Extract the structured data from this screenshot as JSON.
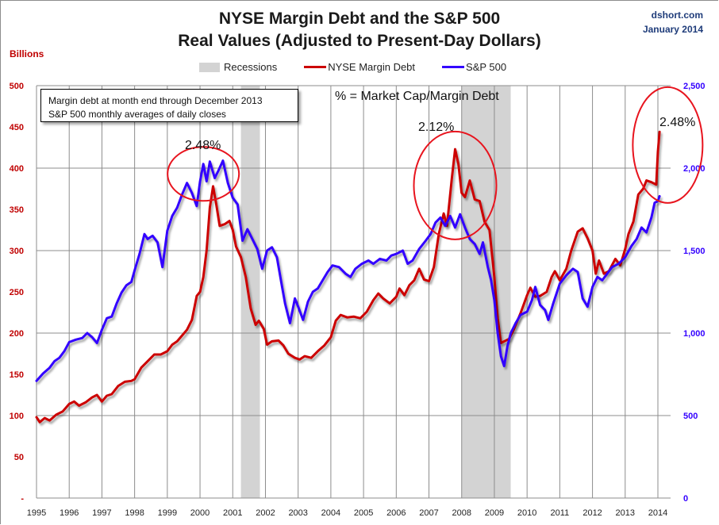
{
  "header": {
    "title_line1": "NYSE Margin Debt and the S&P 500",
    "title_line2": "Real Values (Adjusted to Present-Day Dollars)",
    "source": "dshort.com",
    "date": "January 2014",
    "left_axis_unit": "Billions"
  },
  "legend": {
    "recessions": "Recessions",
    "margin_debt": "NYSE Margin Debt",
    "sp500": "S&P 500"
  },
  "annotations": {
    "note_line1": "Margin debt at month end through  December 2013",
    "note_line2": "S&P 500 monthly averages of daily closes",
    "formula": "% = Market Cap/Margin Debt",
    "peak_2000": "2.48%",
    "peak_2007": "2.12%",
    "peak_2013": "2.48%"
  },
  "colors": {
    "margin_debt": "#cc0000",
    "sp500": "#3300ff",
    "recession": "#d3d3d3",
    "left_axis": "#c00000",
    "right_axis": "#3300ff",
    "circle": "#e8141e"
  },
  "chart_data": {
    "type": "line",
    "title": "NYSE Margin Debt and the S&P 500 Real Values (Adjusted to Present-Day Dollars)",
    "xlabel": "",
    "ylabel_left": "Billions",
    "xlim": [
      1995,
      2014
    ],
    "ylim_left": [
      0,
      500
    ],
    "ylim_right": [
      0,
      2500
    ],
    "grid": true,
    "legend_position": "top-center",
    "x_ticks": [
      "1995",
      "1996",
      "1997",
      "1998",
      "1999",
      "2000",
      "2001",
      "2002",
      "2003",
      "2004",
      "2005",
      "2006",
      "2007",
      "2008",
      "2009",
      "2010",
      "2011",
      "2012",
      "2013",
      "2014"
    ],
    "y_left_ticks": [
      "-",
      "50",
      "100",
      "150",
      "200",
      "250",
      "300",
      "350",
      "400",
      "450",
      "500"
    ],
    "y_right_ticks": [
      "0",
      "500",
      "1,000",
      "1,500",
      "2,000",
      "2,500"
    ],
    "recessions": [
      [
        2001.25,
        2001.83
      ],
      [
        2008.0,
        2009.5
      ]
    ],
    "series": [
      {
        "name": "NYSE Margin Debt",
        "axis": "left",
        "points": [
          [
            1995.0,
            98
          ],
          [
            1995.1,
            92
          ],
          [
            1995.25,
            97
          ],
          [
            1995.4,
            94
          ],
          [
            1995.6,
            101
          ],
          [
            1995.8,
            105
          ],
          [
            1996.0,
            114
          ],
          [
            1996.15,
            117
          ],
          [
            1996.3,
            112
          ],
          [
            1996.5,
            116
          ],
          [
            1996.7,
            122
          ],
          [
            1996.85,
            125
          ],
          [
            1997.0,
            117
          ],
          [
            1997.15,
            124
          ],
          [
            1997.3,
            126
          ],
          [
            1997.5,
            136
          ],
          [
            1997.7,
            141
          ],
          [
            1997.9,
            142
          ],
          [
            1998.0,
            144
          ],
          [
            1998.2,
            158
          ],
          [
            1998.4,
            166
          ],
          [
            1998.6,
            174
          ],
          [
            1998.8,
            174
          ],
          [
            1999.0,
            178
          ],
          [
            1999.15,
            186
          ],
          [
            1999.3,
            190
          ],
          [
            1999.45,
            197
          ],
          [
            1999.6,
            204
          ],
          [
            1999.75,
            216
          ],
          [
            1999.9,
            245
          ],
          [
            2000.0,
            250
          ],
          [
            2000.1,
            268
          ],
          [
            2000.2,
            300
          ],
          [
            2000.3,
            352
          ],
          [
            2000.4,
            378
          ],
          [
            2000.5,
            355
          ],
          [
            2000.6,
            330
          ],
          [
            2000.75,
            332
          ],
          [
            2000.9,
            336
          ],
          [
            2001.0,
            325
          ],
          [
            2001.1,
            305
          ],
          [
            2001.25,
            292
          ],
          [
            2001.4,
            268
          ],
          [
            2001.55,
            230
          ],
          [
            2001.7,
            210
          ],
          [
            2001.8,
            215
          ],
          [
            2001.95,
            205
          ],
          [
            2002.05,
            186
          ],
          [
            2002.2,
            190
          ],
          [
            2002.4,
            191
          ],
          [
            2002.55,
            185
          ],
          [
            2002.7,
            175
          ],
          [
            2002.9,
            170
          ],
          [
            2003.05,
            168
          ],
          [
            2003.2,
            172
          ],
          [
            2003.4,
            170
          ],
          [
            2003.6,
            178
          ],
          [
            2003.8,
            185
          ],
          [
            2004.0,
            195
          ],
          [
            2004.15,
            215
          ],
          [
            2004.3,
            222
          ],
          [
            2004.5,
            219
          ],
          [
            2004.7,
            220
          ],
          [
            2004.9,
            218
          ],
          [
            2005.1,
            226
          ],
          [
            2005.3,
            240
          ],
          [
            2005.45,
            248
          ],
          [
            2005.6,
            242
          ],
          [
            2005.8,
            236
          ],
          [
            2006.0,
            244
          ],
          [
            2006.1,
            254
          ],
          [
            2006.25,
            246
          ],
          [
            2006.4,
            258
          ],
          [
            2006.55,
            264
          ],
          [
            2006.7,
            278
          ],
          [
            2006.85,
            265
          ],
          [
            2007.0,
            263
          ],
          [
            2007.15,
            280
          ],
          [
            2007.3,
            320
          ],
          [
            2007.45,
            345
          ],
          [
            2007.55,
            330
          ],
          [
            2007.7,
            388
          ],
          [
            2007.8,
            423
          ],
          [
            2007.9,
            405
          ],
          [
            2008.0,
            370
          ],
          [
            2008.1,
            365
          ],
          [
            2008.25,
            385
          ],
          [
            2008.4,
            362
          ],
          [
            2008.55,
            360
          ],
          [
            2008.7,
            335
          ],
          [
            2008.85,
            325
          ],
          [
            2009.0,
            268
          ],
          [
            2009.1,
            218
          ],
          [
            2009.2,
            188
          ],
          [
            2009.3,
            190
          ],
          [
            2009.45,
            193
          ],
          [
            2009.6,
            205
          ],
          [
            2009.8,
            224
          ],
          [
            2010.0,
            246
          ],
          [
            2010.1,
            255
          ],
          [
            2010.25,
            244
          ],
          [
            2010.4,
            245
          ],
          [
            2010.6,
            250
          ],
          [
            2010.75,
            268
          ],
          [
            2010.85,
            275
          ],
          [
            2011.0,
            264
          ],
          [
            2011.2,
            278
          ],
          [
            2011.35,
            300
          ],
          [
            2011.55,
            323
          ],
          [
            2011.7,
            327
          ],
          [
            2011.85,
            315
          ],
          [
            2012.0,
            300
          ],
          [
            2012.1,
            272
          ],
          [
            2012.2,
            288
          ],
          [
            2012.35,
            272
          ],
          [
            2012.5,
            275
          ],
          [
            2012.7,
            290
          ],
          [
            2012.85,
            282
          ],
          [
            2013.0,
            302
          ],
          [
            2013.1,
            320
          ],
          [
            2013.25,
            335
          ],
          [
            2013.4,
            368
          ],
          [
            2013.55,
            375
          ],
          [
            2013.65,
            385
          ],
          [
            2013.8,
            383
          ],
          [
            2013.95,
            380
          ],
          [
            2014.0,
            420
          ],
          [
            2014.05,
            444
          ]
        ]
      },
      {
        "name": "S&P 500",
        "axis": "right",
        "points": [
          [
            1995.0,
            710
          ],
          [
            1995.2,
            755
          ],
          [
            1995.4,
            790
          ],
          [
            1995.55,
            830
          ],
          [
            1995.7,
            850
          ],
          [
            1995.85,
            890
          ],
          [
            1996.0,
            945
          ],
          [
            1996.2,
            960
          ],
          [
            1996.4,
            970
          ],
          [
            1996.55,
            1000
          ],
          [
            1996.7,
            975
          ],
          [
            1996.85,
            940
          ],
          [
            1997.0,
            1020
          ],
          [
            1997.15,
            1090
          ],
          [
            1997.3,
            1100
          ],
          [
            1997.45,
            1180
          ],
          [
            1997.6,
            1245
          ],
          [
            1997.75,
            1290
          ],
          [
            1997.9,
            1310
          ],
          [
            1998.0,
            1380
          ],
          [
            1998.15,
            1480
          ],
          [
            1998.3,
            1600
          ],
          [
            1998.4,
            1570
          ],
          [
            1998.55,
            1590
          ],
          [
            1998.7,
            1550
          ],
          [
            1998.85,
            1400
          ],
          [
            1999.0,
            1620
          ],
          [
            1999.15,
            1710
          ],
          [
            1999.3,
            1760
          ],
          [
            1999.45,
            1840
          ],
          [
            1999.6,
            1910
          ],
          [
            1999.75,
            1850
          ],
          [
            1999.9,
            1770
          ],
          [
            2000.0,
            1920
          ],
          [
            2000.1,
            2025
          ],
          [
            2000.2,
            1920
          ],
          [
            2000.3,
            2040
          ],
          [
            2000.45,
            1940
          ],
          [
            2000.55,
            1980
          ],
          [
            2000.7,
            2045
          ],
          [
            2000.85,
            1910
          ],
          [
            2001.0,
            1820
          ],
          [
            2001.15,
            1780
          ],
          [
            2001.3,
            1560
          ],
          [
            2001.45,
            1630
          ],
          [
            2001.6,
            1570
          ],
          [
            2001.75,
            1510
          ],
          [
            2001.9,
            1390
          ],
          [
            2002.05,
            1500
          ],
          [
            2002.2,
            1520
          ],
          [
            2002.35,
            1460
          ],
          [
            2002.5,
            1290
          ],
          [
            2002.6,
            1180
          ],
          [
            2002.75,
            1060
          ],
          [
            2002.9,
            1210
          ],
          [
            2003.0,
            1160
          ],
          [
            2003.15,
            1080
          ],
          [
            2003.3,
            1190
          ],
          [
            2003.45,
            1250
          ],
          [
            2003.6,
            1270
          ],
          [
            2003.75,
            1320
          ],
          [
            2003.9,
            1370
          ],
          [
            2004.05,
            1410
          ],
          [
            2004.25,
            1400
          ],
          [
            2004.45,
            1360
          ],
          [
            2004.6,
            1340
          ],
          [
            2004.75,
            1390
          ],
          [
            2004.95,
            1420
          ],
          [
            2005.15,
            1440
          ],
          [
            2005.3,
            1420
          ],
          [
            2005.5,
            1450
          ],
          [
            2005.7,
            1440
          ],
          [
            2005.85,
            1470
          ],
          [
            2006.0,
            1480
          ],
          [
            2006.2,
            1500
          ],
          [
            2006.35,
            1420
          ],
          [
            2006.5,
            1440
          ],
          [
            2006.7,
            1510
          ],
          [
            2006.9,
            1560
          ],
          [
            2007.05,
            1600
          ],
          [
            2007.2,
            1670
          ],
          [
            2007.35,
            1700
          ],
          [
            2007.5,
            1650
          ],
          [
            2007.65,
            1710
          ],
          [
            2007.8,
            1640
          ],
          [
            2007.95,
            1720
          ],
          [
            2008.1,
            1640
          ],
          [
            2008.25,
            1570
          ],
          [
            2008.4,
            1540
          ],
          [
            2008.55,
            1480
          ],
          [
            2008.65,
            1550
          ],
          [
            2008.8,
            1400
          ],
          [
            2008.9,
            1320
          ],
          [
            2009.0,
            1200
          ],
          [
            2009.1,
            1000
          ],
          [
            2009.2,
            860
          ],
          [
            2009.3,
            800
          ],
          [
            2009.4,
            920
          ],
          [
            2009.5,
            1000
          ],
          [
            2009.65,
            1060
          ],
          [
            2009.8,
            1110
          ],
          [
            2010.0,
            1130
          ],
          [
            2010.15,
            1200
          ],
          [
            2010.25,
            1280
          ],
          [
            2010.4,
            1170
          ],
          [
            2010.55,
            1140
          ],
          [
            2010.65,
            1080
          ],
          [
            2010.8,
            1180
          ],
          [
            2011.0,
            1300
          ],
          [
            2011.2,
            1350
          ],
          [
            2011.4,
            1390
          ],
          [
            2011.55,
            1370
          ],
          [
            2011.7,
            1210
          ],
          [
            2011.85,
            1160
          ],
          [
            2012.0,
            1280
          ],
          [
            2012.15,
            1340
          ],
          [
            2012.3,
            1320
          ],
          [
            2012.45,
            1360
          ],
          [
            2012.6,
            1400
          ],
          [
            2012.8,
            1420
          ],
          [
            2013.0,
            1460
          ],
          [
            2013.2,
            1530
          ],
          [
            2013.35,
            1570
          ],
          [
            2013.5,
            1640
          ],
          [
            2013.65,
            1610
          ],
          [
            2013.8,
            1700
          ],
          [
            2013.9,
            1790
          ],
          [
            2014.0,
            1800
          ],
          [
            2014.05,
            1830
          ]
        ]
      }
    ]
  }
}
